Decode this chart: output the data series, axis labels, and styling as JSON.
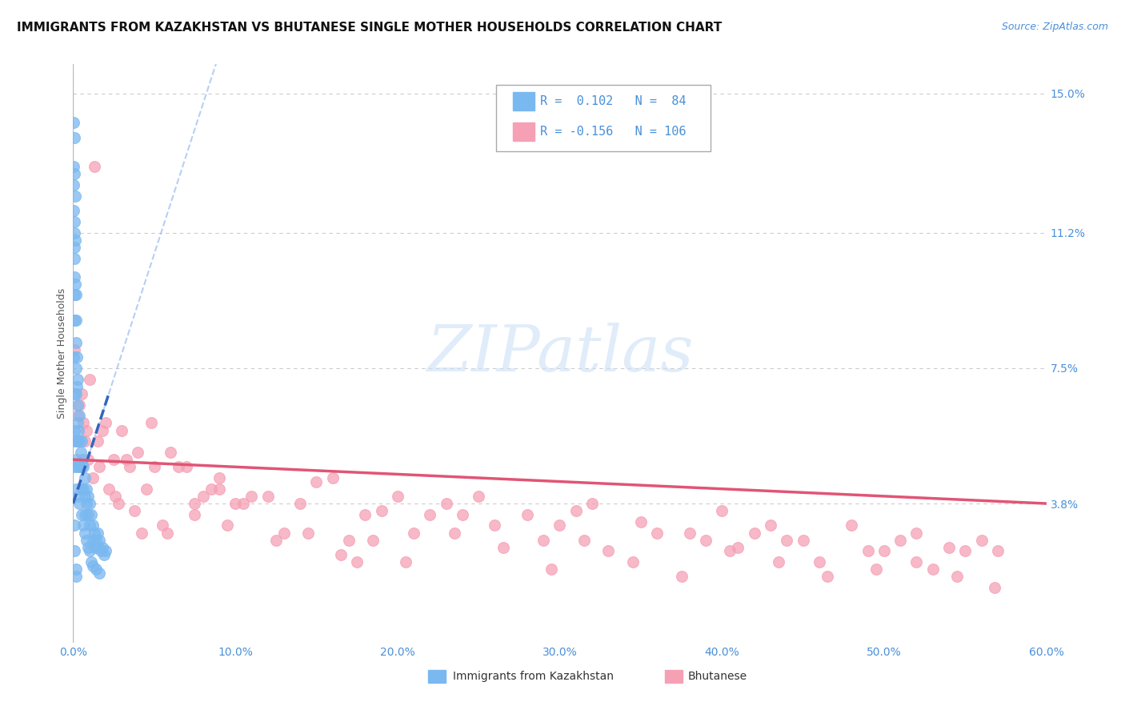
{
  "title": "IMMIGRANTS FROM KAZAKHSTAN VS BHUTANESE SINGLE MOTHER HOUSEHOLDS CORRELATION CHART",
  "source_text": "Source: ZipAtlas.com",
  "ylabel": "Single Mother Households",
  "xlim": [
    0.0,
    0.6
  ],
  "ylim": [
    0.0,
    0.158
  ],
  "xticks": [
    0.0,
    0.1,
    0.2,
    0.3,
    0.4,
    0.5,
    0.6
  ],
  "xticklabels": [
    "0.0%",
    "10.0%",
    "20.0%",
    "30.0%",
    "40.0%",
    "50.0%",
    "60.0%"
  ],
  "yticks_right": [
    0.038,
    0.075,
    0.112,
    0.15
  ],
  "yticklabels_right": [
    "3.8%",
    "7.5%",
    "11.2%",
    "15.0%"
  ],
  "blue_color": "#7ab8f0",
  "pink_color": "#f5a0b5",
  "trend_blue_color": "#3366bb",
  "trend_pink_color": "#e05575",
  "background_color": "#ffffff",
  "grid_color": "#cccccc",
  "axis_color": "#4a90d9",
  "title_fontsize": 11,
  "label_fontsize": 9,
  "tick_fontsize": 10,
  "watermark": "ZIPatlas",
  "kaz_x": [
    0.0002,
    0.0003,
    0.0004,
    0.0005,
    0.0006,
    0.0007,
    0.0008,
    0.001,
    0.001,
    0.001,
    0.001,
    0.001,
    0.001,
    0.0015,
    0.0015,
    0.0015,
    0.002,
    0.002,
    0.002,
    0.002,
    0.002,
    0.0025,
    0.0025,
    0.003,
    0.003,
    0.003,
    0.003,
    0.0035,
    0.004,
    0.004,
    0.004,
    0.0045,
    0.005,
    0.005,
    0.005,
    0.0055,
    0.006,
    0.006,
    0.007,
    0.007,
    0.007,
    0.008,
    0.008,
    0.009,
    0.009,
    0.01,
    0.01,
    0.011,
    0.012,
    0.012,
    0.013,
    0.013,
    0.014,
    0.015,
    0.015,
    0.016,
    0.017,
    0.018,
    0.019,
    0.02,
    0.0005,
    0.0007,
    0.001,
    0.001,
    0.0015,
    0.002,
    0.002,
    0.003,
    0.003,
    0.004,
    0.005,
    0.006,
    0.007,
    0.008,
    0.009,
    0.01,
    0.011,
    0.012,
    0.014,
    0.016,
    0.001,
    0.001,
    0.002,
    0.002
  ],
  "kaz_y": [
    0.142,
    0.13,
    0.125,
    0.118,
    0.112,
    0.108,
    0.1,
    0.138,
    0.128,
    0.115,
    0.105,
    0.095,
    0.088,
    0.122,
    0.11,
    0.098,
    0.095,
    0.088,
    0.082,
    0.075,
    0.068,
    0.078,
    0.07,
    0.072,
    0.065,
    0.06,
    0.055,
    0.058,
    0.062,
    0.055,
    0.048,
    0.052,
    0.055,
    0.048,
    0.042,
    0.05,
    0.048,
    0.042,
    0.045,
    0.04,
    0.035,
    0.042,
    0.038,
    0.04,
    0.035,
    0.038,
    0.032,
    0.035,
    0.032,
    0.028,
    0.03,
    0.026,
    0.028,
    0.03,
    0.026,
    0.028,
    0.025,
    0.026,
    0.024,
    0.025,
    0.078,
    0.068,
    0.058,
    0.048,
    0.055,
    0.05,
    0.042,
    0.048,
    0.04,
    0.038,
    0.035,
    0.032,
    0.03,
    0.028,
    0.026,
    0.025,
    0.022,
    0.021,
    0.02,
    0.019,
    0.032,
    0.025,
    0.02,
    0.018
  ],
  "bhu_x": [
    0.002,
    0.004,
    0.006,
    0.008,
    0.01,
    0.015,
    0.02,
    0.025,
    0.03,
    0.035,
    0.04,
    0.05,
    0.06,
    0.07,
    0.08,
    0.09,
    0.1,
    0.12,
    0.14,
    0.16,
    0.18,
    0.2,
    0.22,
    0.25,
    0.28,
    0.3,
    0.32,
    0.35,
    0.38,
    0.4,
    0.42,
    0.45,
    0.48,
    0.5,
    0.52,
    0.54,
    0.56,
    0.003,
    0.005,
    0.007,
    0.012,
    0.018,
    0.022,
    0.028,
    0.033,
    0.038,
    0.045,
    0.055,
    0.065,
    0.075,
    0.085,
    0.095,
    0.11,
    0.13,
    0.15,
    0.17,
    0.19,
    0.21,
    0.23,
    0.26,
    0.29,
    0.31,
    0.33,
    0.36,
    0.39,
    0.41,
    0.43,
    0.46,
    0.49,
    0.51,
    0.53,
    0.55,
    0.001,
    0.009,
    0.016,
    0.026,
    0.042,
    0.058,
    0.075,
    0.105,
    0.125,
    0.145,
    0.165,
    0.185,
    0.205,
    0.235,
    0.265,
    0.295,
    0.315,
    0.345,
    0.375,
    0.405,
    0.435,
    0.465,
    0.495,
    0.52,
    0.545,
    0.57,
    0.013,
    0.048,
    0.09,
    0.175,
    0.24,
    0.44,
    0.568
  ],
  "bhu_y": [
    0.055,
    0.065,
    0.06,
    0.058,
    0.072,
    0.055,
    0.06,
    0.05,
    0.058,
    0.048,
    0.052,
    0.048,
    0.052,
    0.048,
    0.04,
    0.042,
    0.038,
    0.04,
    0.038,
    0.045,
    0.035,
    0.04,
    0.035,
    0.04,
    0.035,
    0.032,
    0.038,
    0.033,
    0.03,
    0.036,
    0.03,
    0.028,
    0.032,
    0.025,
    0.03,
    0.026,
    0.028,
    0.062,
    0.068,
    0.055,
    0.045,
    0.058,
    0.042,
    0.038,
    0.05,
    0.036,
    0.042,
    0.032,
    0.048,
    0.038,
    0.042,
    0.032,
    0.04,
    0.03,
    0.044,
    0.028,
    0.036,
    0.03,
    0.038,
    0.032,
    0.028,
    0.036,
    0.025,
    0.03,
    0.028,
    0.026,
    0.032,
    0.022,
    0.025,
    0.028,
    0.02,
    0.025,
    0.08,
    0.05,
    0.048,
    0.04,
    0.03,
    0.03,
    0.035,
    0.038,
    0.028,
    0.03,
    0.024,
    0.028,
    0.022,
    0.03,
    0.026,
    0.02,
    0.028,
    0.022,
    0.018,
    0.025,
    0.022,
    0.018,
    0.02,
    0.022,
    0.018,
    0.025,
    0.13,
    0.06,
    0.045,
    0.022,
    0.035,
    0.028,
    0.015
  ],
  "kaz_trend_x": [
    0.0,
    0.022
  ],
  "kaz_trend_y": [
    0.038,
    0.068
  ],
  "bhu_trend_x": [
    0.0,
    0.6
  ],
  "bhu_trend_y": [
    0.05,
    0.038
  ]
}
